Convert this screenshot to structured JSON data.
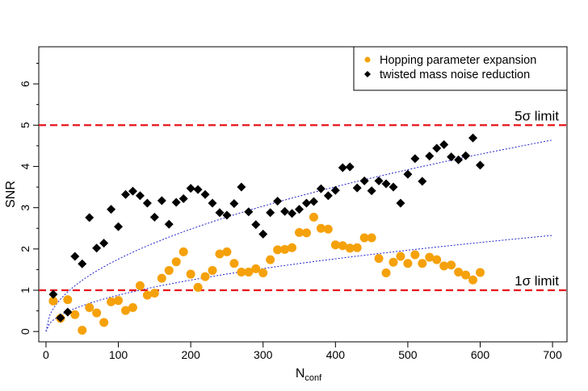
{
  "chart_data": {
    "type": "scatter",
    "xlabel": "N",
    "xlabel_sub": "conf",
    "ylabel": "SNR",
    "xlim": [
      -10,
      720
    ],
    "ylim": [
      -0.25,
      6.9
    ],
    "xticks": [
      0,
      100,
      200,
      300,
      400,
      500,
      600,
      700
    ],
    "yticks": [
      0,
      1,
      2,
      3,
      4,
      5,
      6
    ],
    "grid": false,
    "legend_position": "top-right",
    "reference_lines": [
      {
        "y": 5,
        "label": "5σ limit",
        "color": "#e8141b"
      },
      {
        "y": 1,
        "label": "1σ limit",
        "color": "#e8141b"
      }
    ],
    "fits": [
      {
        "curve": "sqrt",
        "x": [
          0,
          700
        ],
        "y": [
          0,
          4.64
        ],
        "color": "#2222cc"
      },
      {
        "curve": "sqrt",
        "x": [
          0,
          700
        ],
        "y": [
          0,
          2.33
        ],
        "color": "#2222cc"
      }
    ],
    "series": [
      {
        "name": "Hopping parameter expansion",
        "marker": "circle",
        "color": "#f5a10a",
        "x": [
          10,
          20,
          30,
          40,
          50,
          60,
          70,
          80,
          90,
          100,
          110,
          120,
          130,
          140,
          150,
          160,
          170,
          180,
          190,
          200,
          210,
          220,
          230,
          240,
          250,
          260,
          270,
          280,
          290,
          300,
          310,
          320,
          330,
          340,
          350,
          360,
          370,
          380,
          390,
          400,
          410,
          420,
          430,
          440,
          450,
          460,
          470,
          480,
          490,
          500,
          510,
          520,
          530,
          540,
          550,
          560,
          570,
          580,
          590,
          600
        ],
        "y": [
          0.74,
          0.32,
          0.77,
          0.41,
          0.03,
          0.58,
          0.45,
          0.22,
          0.72,
          0.75,
          0.51,
          0.58,
          1.11,
          0.88,
          0.93,
          1.29,
          1.48,
          1.69,
          1.93,
          1.39,
          1.07,
          1.33,
          1.48,
          1.88,
          1.93,
          1.65,
          1.44,
          1.44,
          1.52,
          1.42,
          1.74,
          1.98,
          1.99,
          2.03,
          2.4,
          2.39,
          2.77,
          2.5,
          2.48,
          2.1,
          2.08,
          2.02,
          2.03,
          2.27,
          2.27,
          1.77,
          1.42,
          1.68,
          1.82,
          1.65,
          1.86,
          1.65,
          1.8,
          1.74,
          1.59,
          1.61,
          1.44,
          1.37,
          1.25,
          1.43
        ]
      },
      {
        "name": "twisted mass noise reduction",
        "marker": "diamond",
        "color": "#000000",
        "x": [
          10,
          20,
          30,
          40,
          50,
          60,
          70,
          80,
          90,
          100,
          110,
          120,
          130,
          140,
          150,
          160,
          170,
          180,
          190,
          200,
          210,
          220,
          230,
          240,
          250,
          260,
          270,
          280,
          290,
          300,
          310,
          320,
          330,
          340,
          350,
          360,
          370,
          380,
          390,
          400,
          410,
          420,
          430,
          440,
          450,
          460,
          470,
          480,
          490,
          500,
          510,
          520,
          530,
          540,
          550,
          560,
          570,
          580,
          590,
          600
        ],
        "y": [
          0.9,
          0.33,
          0.47,
          1.82,
          1.64,
          2.76,
          2.02,
          2.14,
          2.96,
          2.54,
          3.32,
          3.4,
          3.29,
          3.11,
          2.77,
          3.17,
          2.6,
          3.13,
          3.22,
          3.47,
          3.44,
          3.32,
          3.11,
          2.88,
          2.82,
          3.1,
          3.5,
          2.9,
          2.59,
          2.36,
          2.88,
          3.16,
          2.91,
          2.86,
          2.96,
          3.11,
          3.15,
          3.46,
          3.29,
          3.42,
          3.97,
          3.99,
          3.48,
          3.65,
          3.41,
          3.65,
          3.58,
          3.5,
          3.11,
          3.81,
          4.19,
          3.64,
          4.25,
          4.44,
          4.53,
          4.23,
          4.16,
          4.26,
          4.69,
          4.03
        ]
      }
    ]
  }
}
